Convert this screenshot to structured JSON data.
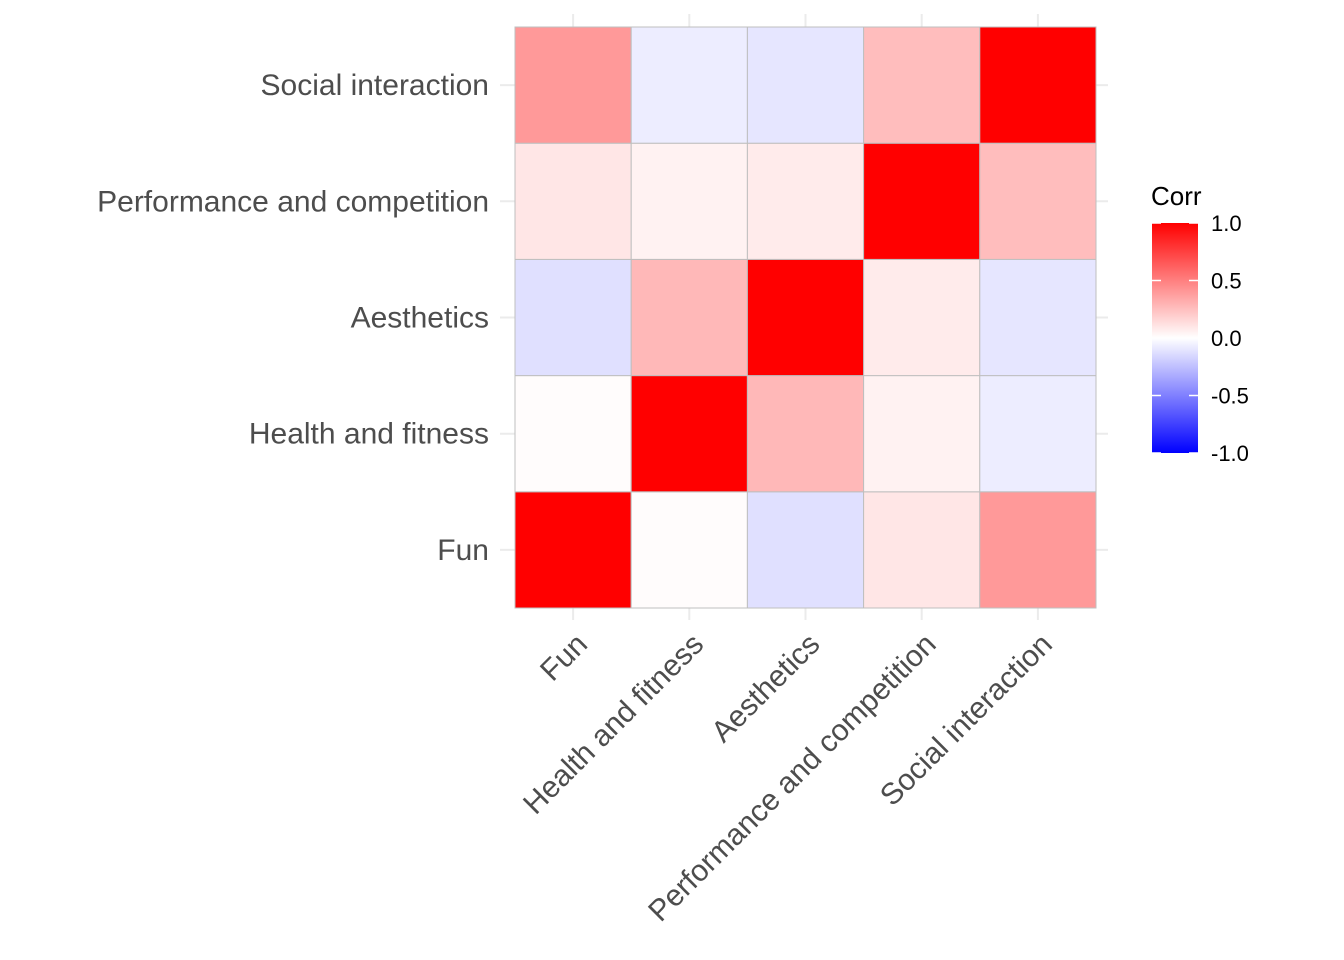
{
  "chart_data": {
    "type": "heatmap",
    "x_categories": [
      "Fun",
      "Health and fitness",
      "Aesthetics",
      "Performance and competition",
      "Social interaction"
    ],
    "y_categories": [
      "Fun",
      "Health and fitness",
      "Aesthetics",
      "Performance and competition",
      "Social interaction"
    ],
    "values": [
      [
        1.0,
        0.01,
        -0.12,
        0.1,
        0.4
      ],
      [
        0.01,
        1.0,
        0.28,
        0.05,
        -0.07
      ],
      [
        -0.12,
        0.28,
        1.0,
        0.08,
        -0.1
      ],
      [
        0.1,
        0.05,
        0.08,
        1.0,
        0.26
      ],
      [
        0.4,
        -0.07,
        -0.1,
        0.26,
        1.0
      ]
    ],
    "legend": {
      "title": "Corr",
      "range": [
        -1.0,
        1.0
      ],
      "ticks": [
        1.0,
        0.5,
        0.0,
        -0.5,
        -1.0
      ],
      "tick_labels": [
        "1.0",
        "0.5",
        "0.0",
        "-0.5",
        "-1.0"
      ],
      "colors": {
        "low": "#0000ff",
        "mid": "#ffffff",
        "high": "#ff0000"
      },
      "placement": "right"
    },
    "grid": true,
    "cell_border_color": "#bfbfbf",
    "gridline_color": "#ebebeb"
  }
}
